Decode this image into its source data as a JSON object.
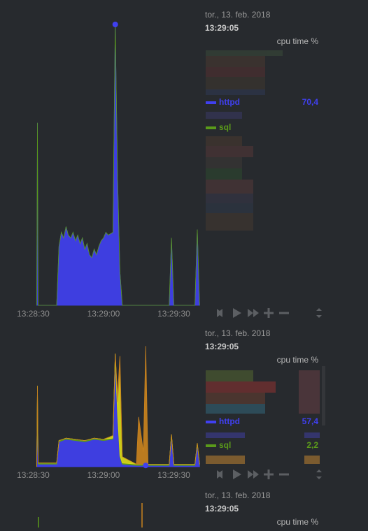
{
  "chart_data": [
    {
      "type": "area",
      "date": "tor., 13. feb. 2018",
      "time": "13:29:05",
      "units": "cpu time %",
      "xlim": [
        -7,
        71.5
      ],
      "ylim": [
        0,
        100
      ],
      "xticks": [
        {
          "value": 0,
          "label": "13:28:30"
        },
        {
          "value": 30,
          "label": "13:29:00"
        },
        {
          "value": 60,
          "label": "13:29:30"
        }
      ],
      "x": [
        1.5,
        1.8,
        2.1,
        10,
        11,
        12,
        13,
        14,
        15,
        16,
        17,
        18,
        19,
        20,
        21,
        22,
        23,
        24,
        25,
        26,
        27,
        28,
        29,
        30,
        31,
        32,
        34,
        35,
        36,
        37,
        38,
        58,
        59,
        60,
        69,
        70,
        71
      ],
      "series": [
        {
          "name": "httpd",
          "color": "#4040f0",
          "current": 70.4,
          "current_label": "70,4",
          "values": [
            0,
            65,
            0,
            0,
            21,
            26,
            24,
            28,
            25,
            24,
            26,
            23,
            25,
            22,
            24,
            20,
            22,
            18,
            17,
            20,
            18,
            21,
            23,
            24,
            26,
            25,
            26,
            100,
            45,
            12,
            0,
            0,
            24,
            0,
            0,
            27,
            0
          ]
        },
        {
          "name": "sql",
          "color": "#5a9a1a",
          "values": [
            0,
            0,
            0,
            0,
            0,
            0,
            0,
            0,
            0,
            0,
            0,
            0,
            0,
            0,
            0,
            0,
            0,
            0,
            0,
            0,
            0,
            0,
            0,
            0,
            0,
            0,
            0,
            0,
            0,
            0,
            0,
            0,
            0,
            0,
            0,
            0,
            0
          ]
        }
      ]
    },
    {
      "type": "area",
      "date": "tor., 13. feb. 2018",
      "time": "13:29:05",
      "units": "cpu time %",
      "xlim": [
        -7,
        71.5
      ],
      "ylim": [
        0,
        100
      ],
      "xticks": [
        {
          "value": 0,
          "label": "13:28:30"
        },
        {
          "value": 30,
          "label": "13:29:00"
        },
        {
          "value": 60,
          "label": "13:29:30"
        }
      ],
      "x": [
        1.5,
        1.8,
        2.1,
        10,
        11,
        14,
        18,
        22,
        26,
        30,
        34,
        35,
        36,
        37,
        38,
        44,
        45,
        47,
        48,
        49,
        58,
        59,
        60,
        69,
        70,
        71
      ],
      "series": [
        {
          "name": "httpd",
          "color": "#4040f0",
          "current": 57.4,
          "current_label": "57,4",
          "values": [
            0,
            60,
            2,
            2,
            20,
            22,
            21,
            20,
            22,
            21,
            22,
            85,
            40,
            8,
            2,
            1,
            1,
            1,
            1,
            1,
            1,
            25,
            1,
            1,
            18,
            1
          ]
        },
        {
          "name": "sql",
          "color": "#5a9a1a",
          "current": 2.2,
          "current_label": "2,2",
          "values": [
            0,
            5,
            1,
            1,
            1,
            1,
            1,
            1,
            1,
            1,
            1,
            3,
            2,
            1,
            1,
            1,
            1,
            1,
            1,
            1,
            1,
            1,
            1,
            1,
            1,
            1
          ]
        },
        {
          "color": "#d8d818",
          "values": [
            0,
            0,
            0,
            0,
            0,
            0,
            0,
            0,
            0,
            0,
            2,
            3,
            10,
            70,
            5,
            0,
            0,
            0,
            0,
            0,
            0,
            0,
            0,
            0,
            0,
            0
          ]
        },
        {
          "color": "#c8821e",
          "values": [
            0,
            0,
            0,
            0,
            0,
            0,
            0,
            0,
            0,
            0,
            0,
            0,
            5,
            10,
            0,
            0,
            38,
            10,
            95,
            0,
            0,
            0,
            0,
            0,
            0,
            0
          ]
        }
      ]
    }
  ],
  "third_panel": {
    "date": "tor., 13. feb. 2018",
    "time": "13:29:05",
    "units": "cpu time %"
  }
}
